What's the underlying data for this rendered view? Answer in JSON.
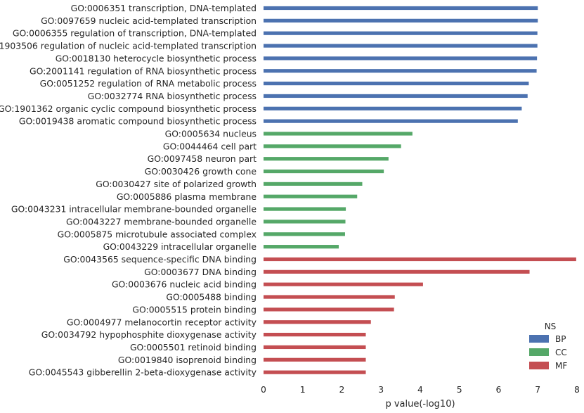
{
  "chart_data": {
    "type": "bar",
    "orientation": "horizontal",
    "xlabel": "p value(-log10)",
    "ylabel": "",
    "xlim": [
      0,
      8
    ],
    "xticks": [
      "0",
      "1",
      "2",
      "3",
      "4",
      "5",
      "6",
      "7",
      "8"
    ],
    "grid": false,
    "legend": {
      "title": "NS",
      "placement": "bottom-right",
      "entries": [
        {
          "name": "BP",
          "color": "#4c72b0"
        },
        {
          "name": "CC",
          "color": "#55a868"
        },
        {
          "name": "MF",
          "color": "#c44e52"
        }
      ]
    },
    "categories": [
      "GO:0006351 transcription, DNA-templated",
      "GO:0097659 nucleic acid-templated transcription",
      "GO:0006355 regulation of transcription, DNA-templated",
      "GO:1903506 regulation of nucleic acid-templated transcription",
      "GO:0018130 heterocycle biosynthetic process",
      "GO:2001141 regulation of RNA biosynthetic process",
      "GO:0051252 regulation of RNA metabolic process",
      "GO:0032774 RNA biosynthetic process",
      "GO:1901362 organic cyclic compound biosynthetic process",
      "GO:0019438 aromatic compound biosynthetic process",
      "GO:0005634 nucleus",
      "GO:0044464 cell part",
      "GO:0097458 neuron part",
      "GO:0030426 growth cone",
      "GO:0030427 site of polarized growth",
      "GO:0005886 plasma membrane",
      "GO:0043231 intracellular membrane-bounded organelle",
      "GO:0043227 membrane-bounded organelle",
      "GO:0005875 microtubule associated complex",
      "GO:0043229 intracellular organelle",
      "GO:0043565 sequence-specific DNA binding",
      "GO:0003677 DNA binding",
      "GO:0003676 nucleic acid binding",
      "GO:0005488 binding",
      "GO:0005515 protein binding",
      "GO:0004977 melanocortin receptor activity",
      "GO:0034792 hypophosphite dioxygenase activity",
      "GO:0005501 retinoid binding",
      "GO:0019840 isoprenoid binding",
      "GO:0045543 gibberellin 2-beta-dioxygenase activity"
    ],
    "groups": [
      "BP",
      "BP",
      "BP",
      "BP",
      "BP",
      "BP",
      "BP",
      "BP",
      "BP",
      "BP",
      "CC",
      "CC",
      "CC",
      "CC",
      "CC",
      "CC",
      "CC",
      "CC",
      "CC",
      "CC",
      "MF",
      "MF",
      "MF",
      "MF",
      "MF",
      "MF",
      "MF",
      "MF",
      "MF",
      "MF"
    ],
    "values": [
      7.0,
      7.0,
      6.99,
      6.99,
      6.98,
      6.97,
      6.77,
      6.74,
      6.59,
      6.49,
      3.8,
      3.51,
      3.19,
      3.07,
      2.52,
      2.39,
      2.1,
      2.09,
      2.08,
      1.92,
      7.98,
      6.79,
      4.07,
      3.35,
      3.33,
      2.74,
      2.61,
      2.61,
      2.61,
      2.61
    ]
  }
}
